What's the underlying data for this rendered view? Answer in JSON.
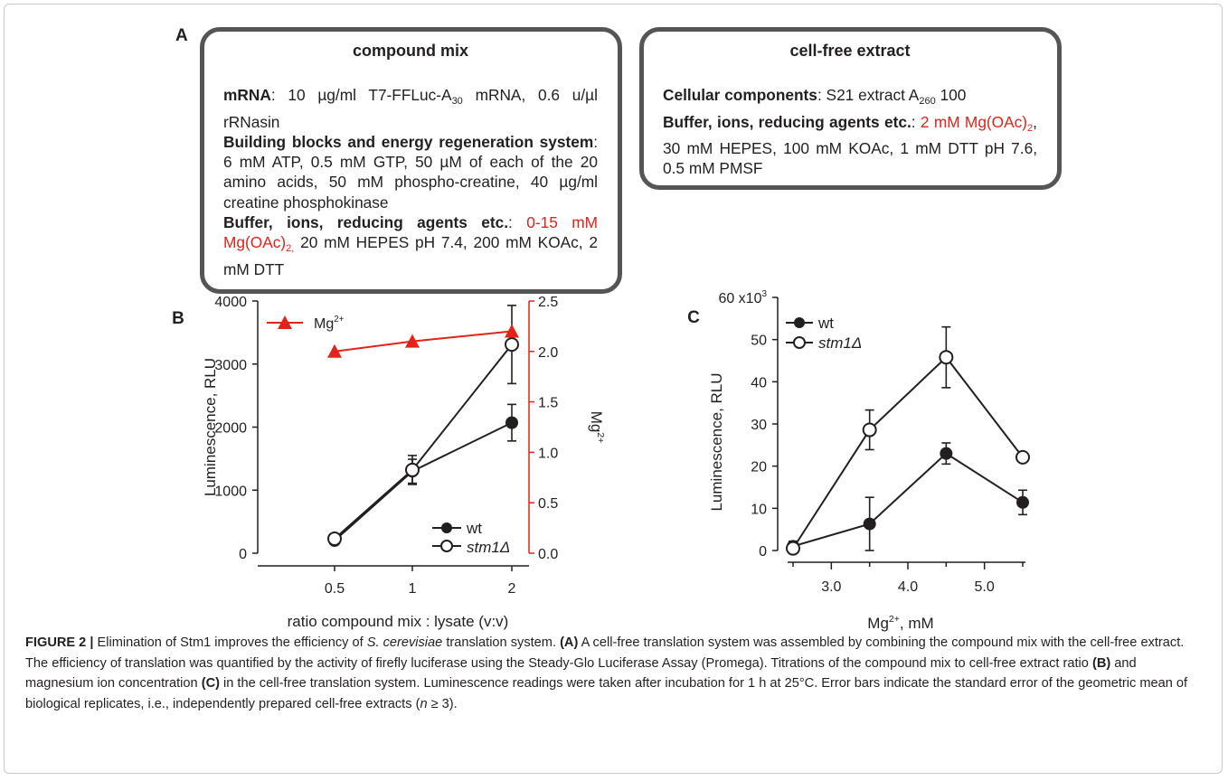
{
  "panel_a": {
    "letter": "A",
    "compound_mix": {
      "title": "compound mix",
      "mrna_label": "mRNA",
      "mrna_text_1": ": 10 µg/ml T7-FFLuc-A",
      "mrna_sub": "30",
      "mrna_text_2": " mRNA, 0.6 u/µl rRNasin",
      "blocks_label": "Building blocks and energy regeneration system",
      "blocks_text": ": 6 mM ATP, 0.5 mM GTP, 50 µM of each of the 20 amino acids, 50 mM phospho-creatine, 40 µg/ml creatine phosphokinase",
      "buffer_label": "Buffer, ions, reducing agents etc.",
      "buffer_colon": ": ",
      "buffer_red": "0-15 mM Mg(OAc)",
      "buffer_red_sub": "2,",
      "buffer_text": " 20 mM HEPES pH 7.4, 200 mM KOAc, 2 mM DTT"
    },
    "cell_free": {
      "title": "cell-free extract",
      "cellular_label": "Cellular components",
      "cellular_text": ": S21 extract  A",
      "cellular_sub": "260",
      "cellular_text_2": " 100",
      "buffer_label": "Buffer, ions, reducing agents etc.",
      "buffer_colon": ": ",
      "buffer_red": "2 mM Mg(OAc)",
      "buffer_red_sub": "2",
      "buffer_text": ", 30 mM HEPES, 100 mM KOAc, 1 mM DTT pH 7.6, 0.5 mM PMSF"
    }
  },
  "colors": {
    "red": "#e2231a",
    "black": "#231f20",
    "box_border": "#555555"
  },
  "chart_data": [
    {
      "panel": "B",
      "type": "line",
      "categories": [
        "0.5",
        "1",
        "2"
      ],
      "xlabel": "ratio compound mix : lysate (v:v)",
      "ylabel": "Luminescence, RLU",
      "ylim": [
        0,
        4000
      ],
      "yticks": [
        "0",
        "1000",
        "2000",
        "3000",
        "4000"
      ],
      "y2label": "Mg",
      "y2label_sup": "2+",
      "y2lim": [
        0,
        2.5
      ],
      "y2ticks": [
        "0.0",
        "0.5",
        "1.0",
        "1.5",
        "2.0",
        "2.5"
      ],
      "series": [
        {
          "name": "wt",
          "marker": "filled-circle",
          "values": [
            200,
            1300,
            2070
          ],
          "errors": [
            40,
            190,
            290
          ]
        },
        {
          "name": "stm1Δ",
          "marker": "open-circle",
          "values": [
            230,
            1320,
            3310
          ],
          "errors": [
            40,
            230,
            620
          ]
        },
        {
          "name": "Mg",
          "name_sup": "2+",
          "marker": "triangle",
          "axis": "right",
          "values": [
            2.0,
            2.1,
            2.2
          ]
        }
      ],
      "legend_placement": "top-left (Mg2+), bottom-right (wt, stm1Δ)"
    },
    {
      "panel": "C",
      "type": "line",
      "x": [
        2.5,
        3.5,
        4.5,
        5.5
      ],
      "xticks": [
        "3.0",
        "4.0",
        "5.0"
      ],
      "xlabel_pre": "Mg",
      "xlabel_sup": "2+",
      "xlabel_post": ", mM",
      "ylabel": "Luminescence, RLU",
      "ylim": [
        0,
        60
      ],
      "yticks": [
        "0",
        "10",
        "20",
        "30",
        "40",
        "50"
      ],
      "ytop_label": "60 x10",
      "ytop_sup": "3",
      "series": [
        {
          "name": "wt",
          "marker": "filled-circle",
          "values": [
            1.0,
            6.3,
            23.0,
            11.4
          ],
          "errors": [
            1.2,
            6.3,
            2.5,
            2.9
          ]
        },
        {
          "name": "stm1Δ",
          "marker": "open-circle",
          "values": [
            0.5,
            28.6,
            45.8,
            22.1
          ],
          "errors": [
            0.8,
            4.7,
            7.2,
            0.5
          ]
        }
      ],
      "legend_placement": "top-left"
    }
  ],
  "caption": {
    "label": "FIGURE 2 |",
    "t1": " Elimination of Stm1 improves the efficiency of ",
    "species": "S. cerevisiae",
    "t2": " translation system. ",
    "a": "(A)",
    "t3": " A cell-free translation system was assembled by combining the compound mix with the cell-free extract. The efficiency of translation was quantified by the activity of firefly luciferase using the Steady-Glo Luciferase Assay (Promega). Titrations of the compound mix to cell-free extract ratio ",
    "b": "(B)",
    "t4": " and magnesium ion concentration ",
    "c": "(C)",
    "t5": " in the cell-free translation system. Luminescence readings were taken after incubation for 1 h at 25°C. Error bars indicate the standard error of the geometric mean of biological replicates, i.e., independently prepared cell-free extracts (",
    "n": "n",
    "t6": " ≥ 3)."
  }
}
